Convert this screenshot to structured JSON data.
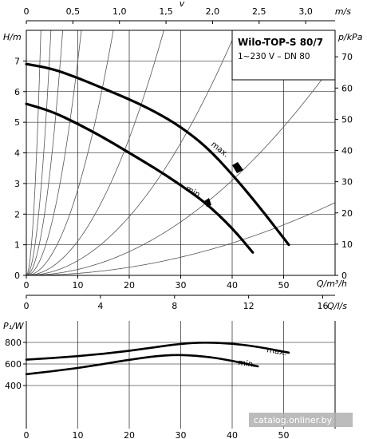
{
  "chart_data": [
    {
      "type": "line",
      "title": "Wilo-TOP-S 80/7",
      "subtitle": "1~230 V – DN 80",
      "xlabel": "Q/m³/h",
      "ylabel": "H/m",
      "ylabel_right": "p/kPa",
      "top_axis_label": "v",
      "top_axis_unit": "m/s",
      "xlim": [
        0,
        60
      ],
      "ylim": [
        0,
        8
      ],
      "grid": true,
      "x_ticks": [
        0,
        10,
        20,
        30,
        40,
        50
      ],
      "y_ticks": [
        0,
        1,
        2,
        3,
        4,
        5,
        6,
        7
      ],
      "right_ticks": [
        0,
        10,
        20,
        30,
        40,
        50,
        60,
        70
      ],
      "top_ticks": [
        "0",
        "0,5",
        "1,0",
        "1,5",
        "2,0",
        "2,5",
        "3,0"
      ],
      "series": [
        {
          "name": "max.",
          "x": [
            0,
            5,
            10,
            15,
            20,
            25,
            30,
            35,
            40,
            45,
            51
          ],
          "y": [
            6.9,
            6.75,
            6.45,
            6.1,
            5.75,
            5.35,
            4.85,
            4.2,
            3.3,
            2.3,
            1.0
          ]
        },
        {
          "name": "min.",
          "x": [
            0,
            5,
            10,
            15,
            20,
            25,
            30,
            35,
            40,
            44
          ],
          "y": [
            5.6,
            5.35,
            4.95,
            4.5,
            4.0,
            3.5,
            2.95,
            2.35,
            1.55,
            0.75
          ]
        }
      ],
      "system_curves_k": [
        1.0,
        0.35,
        0.16,
        0.07,
        0.028,
        0.0112,
        0.0048,
        0.00194,
        0.00066
      ]
    },
    {
      "type": "line",
      "ylabel": "P₁/W",
      "xlabel_top": "Q/l/s",
      "xlim": [
        0,
        60
      ],
      "ylim": [
        0,
        1000
      ],
      "grid": true,
      "x_ticks": [
        0,
        10,
        20,
        30,
        40,
        50
      ],
      "y_ticks": [
        400,
        600,
        800
      ],
      "top_ticks": [
        "0",
        "4",
        "8",
        "12",
        "16"
      ],
      "series": [
        {
          "name": "max.",
          "x": [
            0,
            10,
            20,
            30,
            35,
            40,
            45,
            51
          ],
          "y": [
            640,
            670,
            720,
            790,
            800,
            790,
            760,
            705
          ]
        },
        {
          "name": "min.",
          "x": [
            0,
            10,
            20,
            28,
            35,
            40,
            45
          ],
          "y": [
            505,
            560,
            640,
            690,
            670,
            630,
            578
          ]
        }
      ]
    }
  ],
  "watermark": "catalog.onliner.by"
}
